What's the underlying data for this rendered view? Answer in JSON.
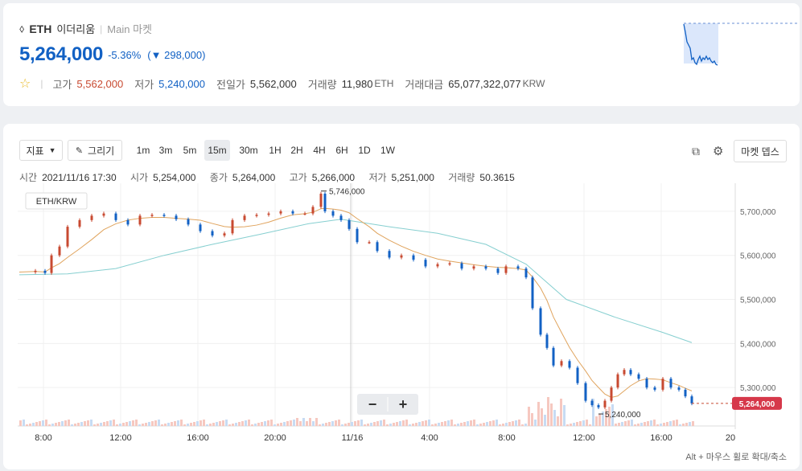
{
  "header": {
    "coin_symbol_glyph": "⬨",
    "code": "ETH",
    "name": "이더리움",
    "market": "Main 마켓",
    "price": "5,264,000",
    "change_rate": "-5.36%",
    "change_arrow": "▼",
    "change_amount": "298,000)",
    "change_paren": "(",
    "stats": {
      "high_label": "고가",
      "high": "5,562,000",
      "low_label": "저가",
      "low": "5,240,000",
      "prev_label": "전일가",
      "prev": "5,562,000",
      "volume_label": "거래량",
      "volume": "11,980",
      "volume_unit": "ETH",
      "amount_label": "거래대금",
      "amount": "65,077,322,077",
      "amount_unit": "KRW"
    }
  },
  "toolbar": {
    "indicator_label": "지표",
    "draw_label": "그리기",
    "timeframes": [
      "1m",
      "3m",
      "5m",
      "15m",
      "30m",
      "1H",
      "2H",
      "4H",
      "6H",
      "1D",
      "1W"
    ],
    "active_timeframe": "15m",
    "market_depth_label": "마켓 뎁스"
  },
  "ohlc_info": {
    "time_label": "시간",
    "time": "2021/11/16 17:30",
    "open_label": "시가",
    "open": "5,254,000",
    "close_label": "종가",
    "close": "5,264,000",
    "high_label": "고가",
    "high": "5,266,000",
    "low_label": "저가",
    "low": "5,251,000",
    "volume_label": "거래량",
    "volume": "50.3615"
  },
  "chart_data": {
    "type": "candlestick",
    "legend": "ETH/KRW",
    "x_ticks": [
      "8:00",
      "12:00",
      "16:00",
      "20:00",
      "11/16",
      "4:00",
      "8:00",
      "12:00",
      "16:00",
      "20"
    ],
    "y_ticks": [
      "5,700,000",
      "5,600,000",
      "5,500,000",
      "5,400,000",
      "5,300,000"
    ],
    "ylim": [
      5220000,
      5760000
    ],
    "current_price_label": "5,264,000",
    "max_label": "5,746,000",
    "min_label": "5,240,000",
    "hint": "Alt + 마우스 휠로 확대/축소",
    "zoom_out": "−",
    "zoom_in": "+",
    "colors": {
      "up": "#c84a31",
      "down": "#1261c4",
      "ma_short": "#e0a45e",
      "ma_long": "#86cfd0"
    }
  },
  "sparkline": {
    "type": "line",
    "reference_line": "dashed",
    "trend": "down"
  }
}
